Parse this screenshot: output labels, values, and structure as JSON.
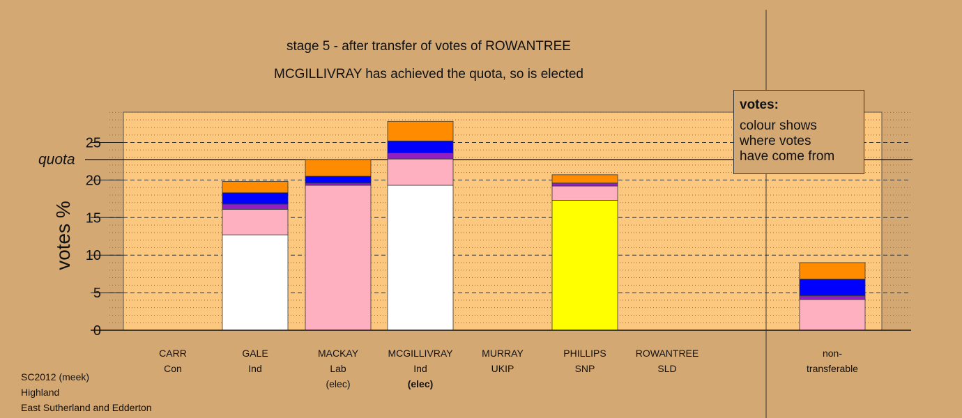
{
  "title_lines": [
    "stage 5 - after transfer of votes of ROWANTREE",
    "MCGILLIVRAY has achieved the quota, so is elected"
  ],
  "legend": {
    "title": "votes:",
    "text": "colour shows\nwhere votes\nhave come from"
  },
  "footer": [
    "SC2012 (meek)",
    "Highland",
    "East Sutherland and Edderton"
  ],
  "colors": {
    "background": "#d4a872",
    "plot_fill": "#fcc87f",
    "axis": "#222222",
    "ind_gale": "#ffffff",
    "lab": "#ffb0c0",
    "ind_mcgillivray": "#ffffff",
    "snp": "#ffff00",
    "ukip": "#9020c0",
    "con": "#0000ff",
    "sld": "#ff8c00"
  },
  "chart_data": {
    "type": "bar",
    "stacked": true,
    "ylabel": "votes %",
    "ylim": [
      0,
      29
    ],
    "yticks": [
      0,
      5,
      10,
      15,
      20,
      25
    ],
    "grid": "dotted minor, dashed major",
    "quota": {
      "label": "quota",
      "value": 22.7
    },
    "categories": [
      {
        "name": "CARR",
        "party": "Con",
        "note": ""
      },
      {
        "name": "GALE",
        "party": "Ind",
        "note": ""
      },
      {
        "name": "MACKAY",
        "party": "Lab",
        "note": "(elec)"
      },
      {
        "name": "MCGILLIVRAY",
        "party": "Ind",
        "note": "(elec)"
      },
      {
        "name": "MURRAY",
        "party": "UKIP",
        "note": ""
      },
      {
        "name": "PHILLIPS",
        "party": "SNP",
        "note": ""
      },
      {
        "name": "ROWANTREE",
        "party": "SLD",
        "note": ""
      },
      {
        "name": "non-",
        "party": "transferable",
        "note": ""
      }
    ],
    "bars": [
      [],
      [
        {
          "color": "#ffffff",
          "value": 12.7
        },
        {
          "color": "#ffb0c0",
          "value": 3.4
        },
        {
          "color": "#9020c0",
          "value": 0.7
        },
        {
          "color": "#0000ff",
          "value": 1.5
        },
        {
          "color": "#ff8c00",
          "value": 1.5
        }
      ],
      [
        {
          "color": "#ffb0c0",
          "value": 19.3
        },
        {
          "color": "#9020c0",
          "value": 0.3
        },
        {
          "color": "#0000ff",
          "value": 0.9
        },
        {
          "color": "#ff8c00",
          "value": 2.2
        }
      ],
      [
        {
          "color": "#ffffff",
          "value": 19.3
        },
        {
          "color": "#ffb0c0",
          "value": 3.5
        },
        {
          "color": "#9020c0",
          "value": 0.8
        },
        {
          "color": "#0000ff",
          "value": 1.6
        },
        {
          "color": "#ff8c00",
          "value": 2.6
        }
      ],
      [],
      [
        {
          "color": "#ffff00",
          "value": 17.3
        },
        {
          "color": "#ffb0c0",
          "value": 1.9
        },
        {
          "color": "#9020c0",
          "value": 0.4
        },
        {
          "color": "#ff8c00",
          "value": 1.1
        }
      ],
      [],
      [
        {
          "color": "#ffb0c0",
          "value": 4.1
        },
        {
          "color": "#9020c0",
          "value": 0.5
        },
        {
          "color": "#0000ff",
          "value": 2.2
        },
        {
          "color": "#ff8c00",
          "value": 2.2
        }
      ]
    ]
  }
}
